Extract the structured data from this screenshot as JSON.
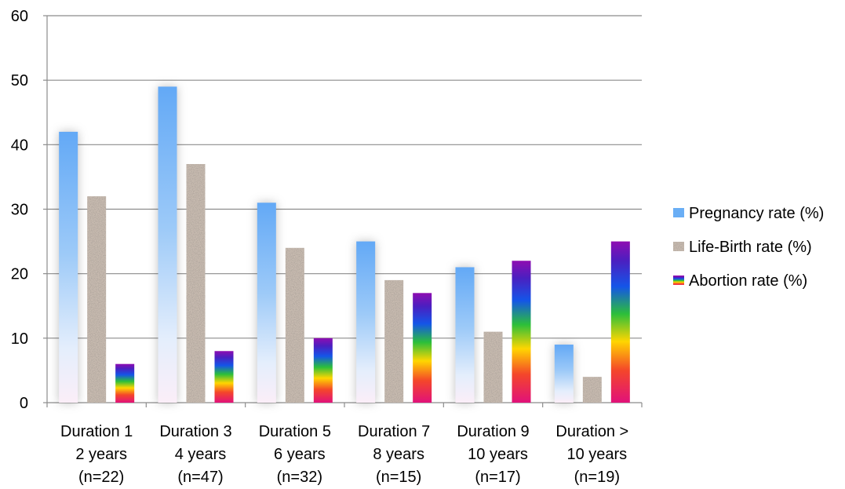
{
  "chart_data": {
    "type": "bar",
    "title": "",
    "xlabel": "",
    "ylabel": "",
    "ylim": [
      0,
      60
    ],
    "yticks": [
      0,
      10,
      20,
      30,
      40,
      50,
      60
    ],
    "grid": true,
    "legend_position": "right",
    "categories": [
      [
        "Duration 1",
        "2 years",
        "(n=22)"
      ],
      [
        "Duration 3",
        "4 years",
        "(n=47)"
      ],
      [
        "Duration 5",
        "6 years",
        "(n=32)"
      ],
      [
        "Duration 7",
        "8 years",
        "(n=15)"
      ],
      [
        "Duration 9",
        "10 years",
        "(n=17)"
      ],
      [
        "Duration >",
        "10 years",
        "(n=19)"
      ]
    ],
    "series": [
      {
        "name": "Pregnancy rate (%)",
        "values": [
          42,
          49,
          31,
          25,
          21,
          9
        ],
        "color": "#6aaef5"
      },
      {
        "name": "Life-Birth rate (%)",
        "values": [
          32,
          37,
          24,
          19,
          11,
          4
        ],
        "color": "#9a8a80"
      },
      {
        "name": "Abortion rate (%)",
        "values": [
          6,
          8,
          10,
          17,
          22,
          25
        ],
        "color": "#8a10b0"
      }
    ]
  }
}
